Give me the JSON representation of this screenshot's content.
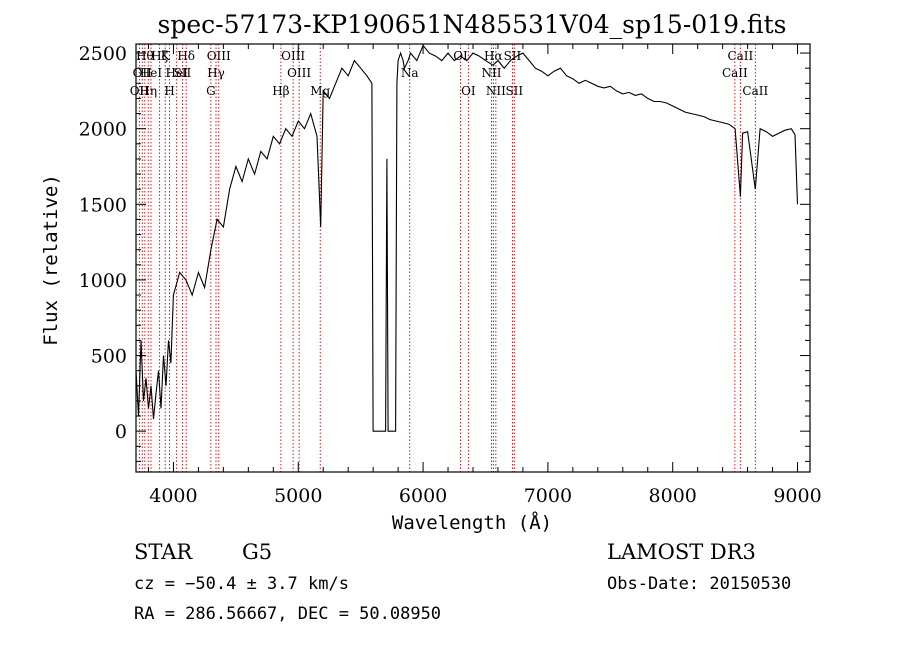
{
  "chart_data": {
    "type": "line",
    "title": "spec-57173-KP190651N485531V04_sp15-019.fits",
    "xlabel": "Wavelength (Å)",
    "ylabel": "Flux (relative)",
    "xlim": [
      3700,
      9100
    ],
    "ylim": [
      -270,
      2560
    ],
    "x_ticks": [
      4000,
      5000,
      6000,
      7000,
      8000,
      9000
    ],
    "y_ticks": [
      0,
      500,
      1000,
      1500,
      2000,
      2500
    ],
    "grid": false,
    "series": [
      {
        "x": [
          3700,
          3720,
          3740,
          3760,
          3780,
          3800,
          3820,
          3840,
          3860,
          3880,
          3900,
          3920,
          3940,
          3960,
          3980,
          4000,
          4050,
          4100,
          4150,
          4200,
          4250,
          4300,
          4350,
          4400,
          4450,
          4500,
          4550,
          4600,
          4650,
          4700,
          4750,
          4800,
          4850,
          4900,
          4950,
          5000,
          5050,
          5100,
          5150,
          5180,
          5200,
          5250,
          5300,
          5350,
          5400,
          5450,
          5500,
          5550,
          5590,
          5600,
          5700,
          5710,
          5720,
          5730,
          5780,
          5790,
          5800,
          5820,
          5840,
          5850,
          5880,
          5900,
          5950,
          6000,
          6050,
          6100,
          6150,
          6200,
          6250,
          6300,
          6350,
          6400,
          6450,
          6500,
          6560,
          6600,
          6650,
          6700,
          6750,
          6800,
          6850,
          6900,
          6950,
          7000,
          7050,
          7100,
          7150,
          7200,
          7250,
          7300,
          7350,
          7400,
          7450,
          7500,
          7550,
          7600,
          7650,
          7700,
          7750,
          7800,
          7850,
          7900,
          7950,
          8000,
          8050,
          8100,
          8150,
          8200,
          8250,
          8300,
          8350,
          8400,
          8450,
          8500,
          8542,
          8560,
          8600,
          8662,
          8700,
          8750,
          8800,
          8850,
          8900,
          8950,
          8980,
          9000
        ],
        "y": [
          400,
          100,
          600,
          200,
          350,
          150,
          300,
          80,
          250,
          400,
          150,
          500,
          300,
          600,
          450,
          900,
          1050,
          1000,
          900,
          1050,
          950,
          1200,
          1400,
          1350,
          1600,
          1750,
          1650,
          1800,
          1700,
          1850,
          1800,
          1950,
          1900,
          2000,
          1950,
          2050,
          2000,
          2100,
          1950,
          1350,
          2250,
          2200,
          2300,
          2400,
          2350,
          2450,
          2400,
          2350,
          2300,
          0,
          0,
          1800,
          0,
          0,
          0,
          2300,
          2450,
          2500,
          2450,
          2400,
          2450,
          2500,
          2450,
          2550,
          2500,
          2480,
          2450,
          2500,
          2450,
          2480,
          2450,
          2500,
          2480,
          2450,
          2420,
          2450,
          2400,
          2450,
          2480,
          2500,
          2450,
          2400,
          2380,
          2350,
          2380,
          2400,
          2350,
          2330,
          2300,
          2320,
          2300,
          2280,
          2270,
          2280,
          2250,
          2230,
          2240,
          2220,
          2230,
          2200,
          2180,
          2180,
          2170,
          2150,
          2130,
          2110,
          2100,
          2090,
          2080,
          2060,
          2050,
          2040,
          2030,
          2000,
          1550,
          1970,
          1980,
          1600,
          2000,
          1980,
          1950,
          1970,
          1990,
          2000,
          1960,
          1500
        ]
      }
    ],
    "line_markers": [
      {
        "x": 3727,
        "label": "OII",
        "row": 2
      },
      {
        "x": 3750,
        "label": "OII",
        "row": 1
      },
      {
        "x": 3771,
        "label": "Hθ",
        "row": 0
      },
      {
        "x": 3798,
        "label": "Hη",
        "row": 2
      },
      {
        "x": 3820,
        "label": "HeI",
        "row": 1
      },
      {
        "x": 3889,
        "label": "Hζ",
        "row": 0
      },
      {
        "x": 3934,
        "label": "K",
        "row": 0
      },
      {
        "x": 3969,
        "label": "H",
        "row": 2
      },
      {
        "x": 4026,
        "label": "HeI",
        "row": 1
      },
      {
        "x": 4072,
        "label": "SII",
        "row": 1
      },
      {
        "x": 4102,
        "label": "Hδ",
        "row": 0
      },
      {
        "x": 4300,
        "label": "G",
        "row": 2
      },
      {
        "x": 4341,
        "label": "Hγ",
        "row": 1
      },
      {
        "x": 4363,
        "label": "OIII",
        "row": 0
      },
      {
        "x": 4861,
        "label": "Hβ",
        "row": 2
      },
      {
        "x": 4959,
        "label": "OIII",
        "row": 0
      },
      {
        "x": 5007,
        "label": "OIII",
        "row": 1
      },
      {
        "x": 5176,
        "label": "Mg",
        "row": 2
      },
      {
        "x": 5893,
        "label": "Na",
        "row": 1
      },
      {
        "x": 6300,
        "label": "OI",
        "row": 0
      },
      {
        "x": 6363,
        "label": "OI",
        "row": 2
      },
      {
        "x": 6548,
        "label": "NII",
        "row": 1
      },
      {
        "x": 6563,
        "label": "Hα",
        "row": 0
      },
      {
        "x": 6583,
        "label": "NII",
        "row": 2
      },
      {
        "x": 6716,
        "label": "SII",
        "row": 0
      },
      {
        "x": 6731,
        "label": "SII",
        "row": 2
      },
      {
        "x": 8498,
        "label": "CaII",
        "row": 1
      },
      {
        "x": 8542,
        "label": "CaII",
        "row": 0
      },
      {
        "x": 8662,
        "label": "CaII",
        "row": 2
      }
    ],
    "line_marker_color": "#cc0000"
  },
  "info": {
    "object_class": "STAR",
    "subclass": "G5",
    "survey": "LAMOST DR3",
    "redshift_text": "cz = −50.4 ± 3.7 km/s",
    "obs_date": "Obs-Date: 20150530",
    "coords_text": "RA = 286.56667, DEC =  50.08950"
  }
}
